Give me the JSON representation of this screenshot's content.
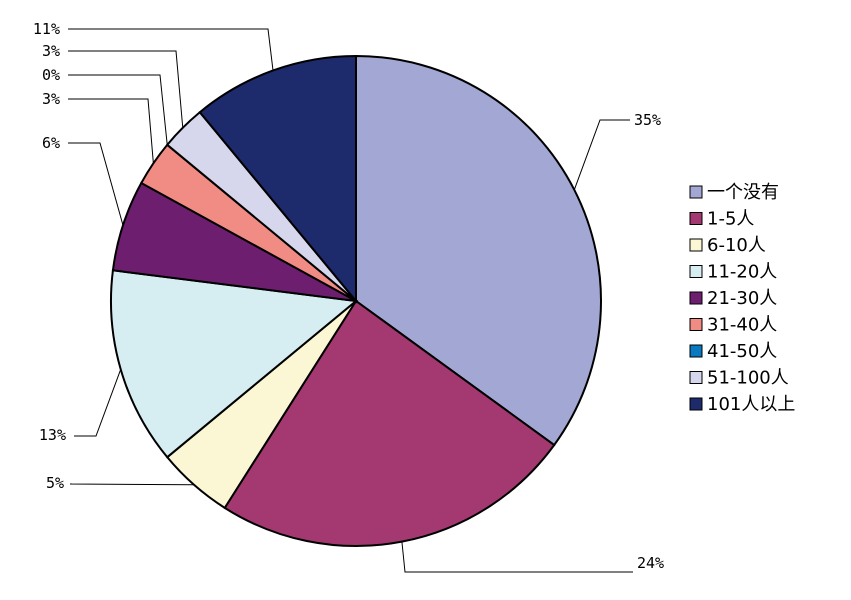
{
  "chart_data": {
    "type": "pie",
    "title": "",
    "legend_position": "right",
    "slices": [
      {
        "name": "一个没有",
        "value": 35,
        "label": "35%",
        "color": "#a3a7d3"
      },
      {
        "name": "1-5人",
        "value": 24,
        "label": "24%",
        "color": "#a33970"
      },
      {
        "name": "6-10人",
        "value": 5,
        "label": "5%",
        "color": "#fbf6d3"
      },
      {
        "name": "11-20人",
        "value": 13,
        "label": "13%",
        "color": "#d6eef2"
      },
      {
        "name": "21-30人",
        "value": 6,
        "label": "6%",
        "color": "#6e1e6f"
      },
      {
        "name": "31-40人",
        "value": 3,
        "label": "3%",
        "color": "#f08c84"
      },
      {
        "name": "41-50人",
        "value": 0,
        "label": "0%",
        "color": "#0a7ac0"
      },
      {
        "name": "51-100人",
        "value": 3,
        "label": "3%",
        "color": "#d6d6ec"
      },
      {
        "name": "101人以上",
        "value": 11,
        "label": "11%",
        "color": "#1d2a6b"
      }
    ]
  }
}
